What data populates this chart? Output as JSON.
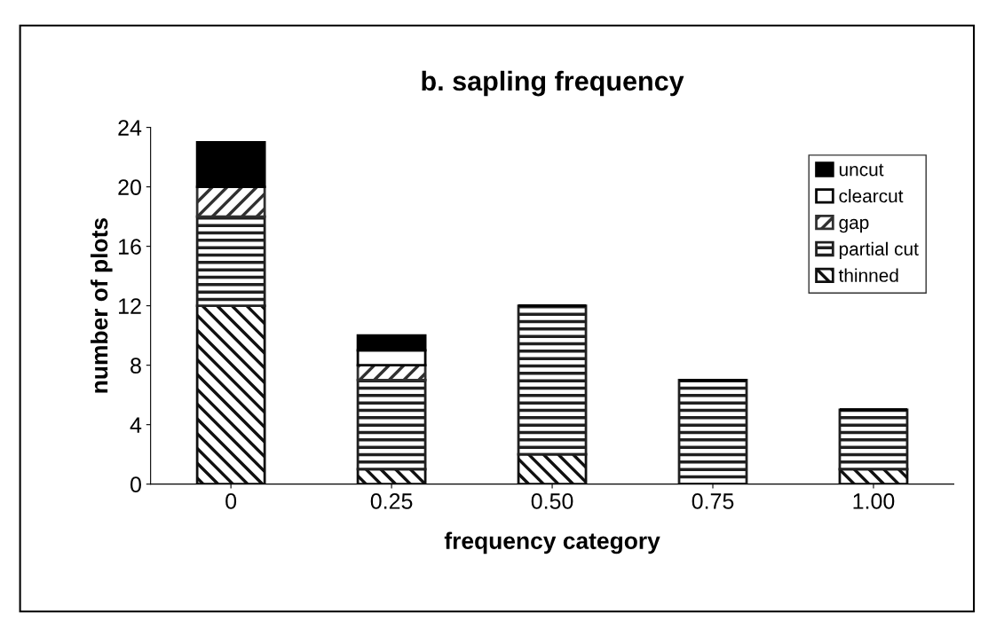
{
  "chart_data": {
    "type": "bar",
    "title": "b. sapling frequency",
    "xlabel": "frequency category",
    "ylabel": "number of plots",
    "categories": [
      "0",
      "0.25",
      "0.50",
      "0.75",
      "1.00"
    ],
    "stacked": true,
    "series": [
      {
        "name": "thinned",
        "color": "#101010",
        "values": [
          12,
          1,
          2,
          0,
          1
        ]
      },
      {
        "name": "partial cut",
        "color": "#202020",
        "values": [
          6,
          6,
          10,
          7,
          4
        ]
      },
      {
        "name": "gap",
        "color": "#303030",
        "values": [
          2,
          1,
          0,
          0,
          0
        ]
      },
      {
        "name": "clearcut",
        "color": "#ffffff",
        "values": [
          0,
          1,
          0,
          0,
          0
        ]
      },
      {
        "name": "uncut",
        "color": "#000000",
        "values": [
          3,
          1,
          0,
          0,
          0
        ]
      }
    ],
    "ylim": [
      0,
      24
    ],
    "yticks": [
      0,
      4,
      8,
      12,
      16,
      20,
      24
    ],
    "grid": false,
    "legend": "top right"
  }
}
